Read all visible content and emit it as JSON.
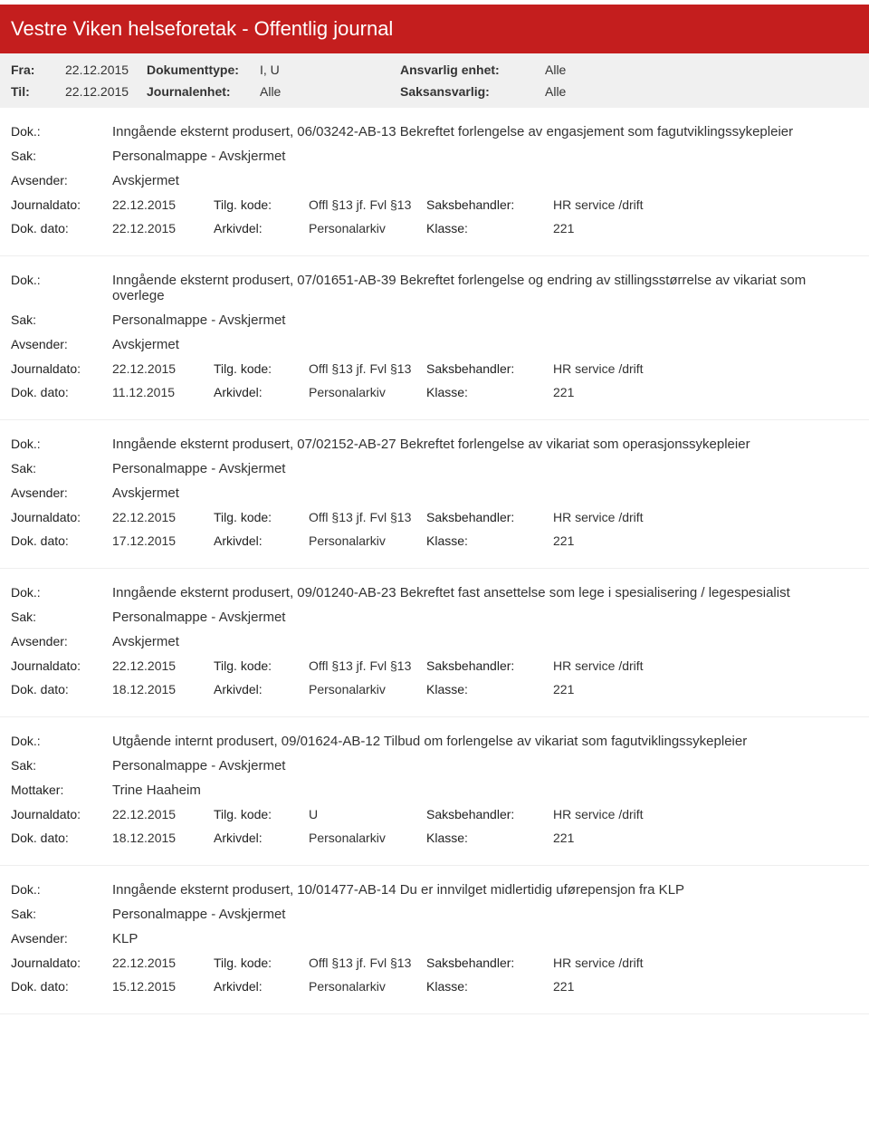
{
  "header": {
    "title": "Vestre Viken helseforetak - Offentlig journal"
  },
  "meta": {
    "fra_label": "Fra:",
    "fra_value": "22.12.2015",
    "til_label": "Til:",
    "til_value": "22.12.2015",
    "doktype_label": "Dokumenttype:",
    "doktype_value": "I, U",
    "journalenhet_label": "Journalenhet:",
    "journalenhet_value": "Alle",
    "ansvarlig_label": "Ansvarlig enhet:",
    "ansvarlig_value": "Alle",
    "saksansvarlig_label": "Saksansvarlig:",
    "saksansvarlig_value": "Alle"
  },
  "labels": {
    "dok": "Dok.:",
    "sak": "Sak:",
    "avsender": "Avsender:",
    "mottaker": "Mottaker:",
    "journaldato": "Journaldato:",
    "dokdato": "Dok. dato:",
    "tilgkode": "Tilg. kode:",
    "arkivdel": "Arkivdel:",
    "saksbehandler": "Saksbehandler:",
    "klasse": "Klasse:"
  },
  "entries": [
    {
      "dok": "Inngående eksternt produsert, 06/03242-AB-13 Bekreftet forlengelse av engasjement som fagutviklingssykepleier",
      "sak": "Personalmappe - Avskjermet",
      "party_label": "Avsender:",
      "party": "Avskjermet",
      "journaldato": "22.12.2015",
      "tilgkode": "Offl §13 jf. Fvl §13",
      "saksbehandler": "HR service /drift",
      "dokdato": "22.12.2015",
      "arkivdel": "Personalarkiv",
      "klasse": "221"
    },
    {
      "dok": "Inngående eksternt produsert, 07/01651-AB-39 Bekreftet forlengelse og endring av stillingsstørrelse av vikariat som overlege",
      "sak": "Personalmappe - Avskjermet",
      "party_label": "Avsender:",
      "party": "Avskjermet",
      "journaldato": "22.12.2015",
      "tilgkode": "Offl §13 jf. Fvl §13",
      "saksbehandler": "HR service /drift",
      "dokdato": "11.12.2015",
      "arkivdel": "Personalarkiv",
      "klasse": "221"
    },
    {
      "dok": "Inngående eksternt produsert, 07/02152-AB-27 Bekreftet forlengelse av vikariat som operasjonssykepleier",
      "sak": "Personalmappe - Avskjermet",
      "party_label": "Avsender:",
      "party": "Avskjermet",
      "journaldato": "22.12.2015",
      "tilgkode": "Offl §13 jf. Fvl §13",
      "saksbehandler": "HR service /drift",
      "dokdato": "17.12.2015",
      "arkivdel": "Personalarkiv",
      "klasse": "221"
    },
    {
      "dok": "Inngående eksternt produsert, 09/01240-AB-23 Bekreftet fast ansettelse som lege i spesialisering / legespesialist",
      "sak": "Personalmappe - Avskjermet",
      "party_label": "Avsender:",
      "party": "Avskjermet",
      "journaldato": "22.12.2015",
      "tilgkode": "Offl §13 jf. Fvl §13",
      "saksbehandler": "HR service /drift",
      "dokdato": "18.12.2015",
      "arkivdel": "Personalarkiv",
      "klasse": "221"
    },
    {
      "dok": "Utgående internt produsert, 09/01624-AB-12 Tilbud om forlengelse av vikariat som fagutviklingssykepleier",
      "sak": "Personalmappe - Avskjermet",
      "party_label": "Mottaker:",
      "party": "Trine Haaheim",
      "journaldato": "22.12.2015",
      "tilgkode": "U",
      "saksbehandler": "HR service /drift",
      "dokdato": "18.12.2015",
      "arkivdel": "Personalarkiv",
      "klasse": "221"
    },
    {
      "dok": "Inngående eksternt produsert, 10/01477-AB-14 Du er innvilget midlertidig uførepensjon fra KLP",
      "sak": "Personalmappe - Avskjermet",
      "party_label": "Avsender:",
      "party": "KLP",
      "journaldato": "22.12.2015",
      "tilgkode": "Offl §13 jf. Fvl §13",
      "saksbehandler": "HR service /drift",
      "dokdato": "15.12.2015",
      "arkivdel": "Personalarkiv",
      "klasse": "221"
    }
  ]
}
